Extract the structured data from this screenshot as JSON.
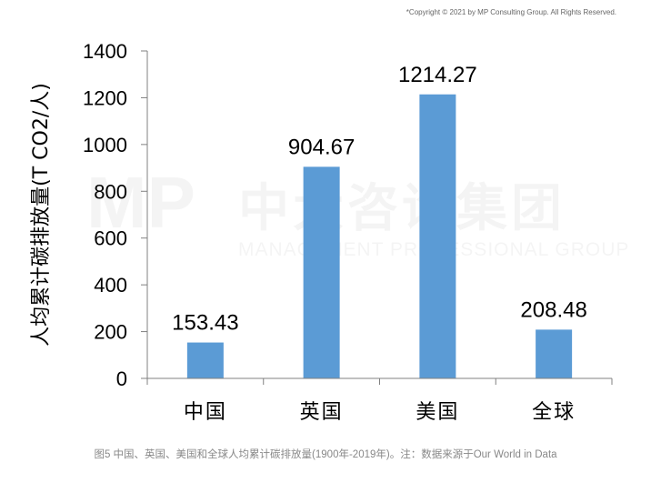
{
  "copyright": "*Copyright © 2021 by MP Consulting Group. All Rights Reserved.",
  "watermark": {
    "logo": "MP",
    "name_cn": "中大咨询集团",
    "name_en": "MANAGEMENT PROFESSIONAL GROUP"
  },
  "caption": "图5  中国、英国、美国和全球人均累计碳排放量(1900年-2019年)。注：数据来源于Our World in Data",
  "colors": {
    "bar": "#5B9BD5",
    "axis": "#808080",
    "text": "#000000"
  },
  "chart_data": {
    "type": "bar",
    "categories": [
      "中国",
      "英国",
      "美国",
      "全球"
    ],
    "values": [
      153.43,
      904.67,
      1214.27,
      208.48
    ],
    "data_labels": [
      "153.43",
      "904.67",
      "1214.27",
      "208.48"
    ],
    "ylabel": "人均累计碳排放量(T CO2/人)",
    "xlabel": "",
    "ylim": [
      0,
      1400
    ],
    "yticks": [
      0,
      200,
      400,
      600,
      800,
      1000,
      1200,
      1400
    ],
    "grid": false,
    "legend": "none"
  }
}
